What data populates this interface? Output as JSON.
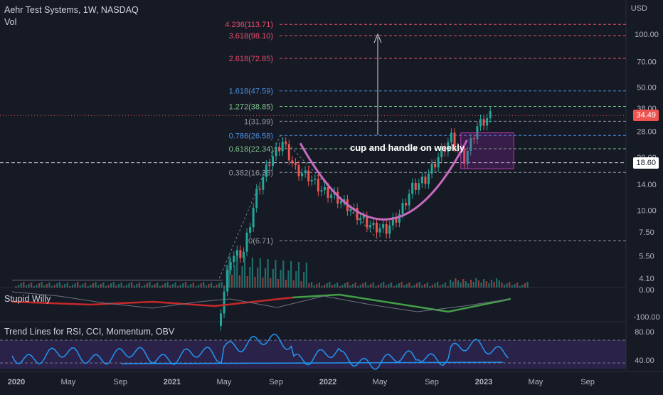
{
  "header": {
    "title": "Aehr Test Systems, 1W, NASDAQ",
    "volume_label": "Vol",
    "currency": "USD"
  },
  "indicators": {
    "pane1_label": "Stupid Willy",
    "pane2_label": "Trend Lines for RSI, CCI, Momentum, OBV"
  },
  "annotation": "cup and handle on weekly",
  "price_tags": {
    "last": "34.49",
    "level": "18.60"
  },
  "colors": {
    "background": "#161a25",
    "up": "#26a69a",
    "down": "#ef5350",
    "cup_curve": "#c86bbe",
    "handle_box": "#9c27b0",
    "fib_red": "#e64d6b",
    "fib_blue": "#4a8fe0",
    "fib_green": "#7fc38a",
    "rsi_line": "#2196f3"
  },
  "chart_data": [
    {
      "type": "candlestick",
      "title": "Aehr Test Systems, 1W, NASDAQ",
      "scale": "log",
      "x_tick_labels": [
        "2020",
        "May",
        "Sep",
        "2021",
        "May",
        "Sep",
        "2022",
        "May",
        "Sep",
        "2023",
        "May",
        "Sep"
      ],
      "y_tick_labels": [
        "100.00",
        "70.00",
        "50.00",
        "38.00",
        "28.00",
        "20.00",
        "14.00",
        "10.00",
        "7.50",
        "5.50",
        "4.10"
      ],
      "ylim": [
        3.9,
        130
      ],
      "last_price": 34.49,
      "marked_level": 18.6,
      "fibonacci_levels": [
        {
          "label": "4.236(113.71)",
          "value": 113.71
        },
        {
          "label": "3.618(98.10)",
          "value": 98.1
        },
        {
          "label": "2.618(72.85)",
          "value": 72.85
        },
        {
          "label": "1.618(47.59)",
          "value": 47.59
        },
        {
          "label": "1.272(38.85)",
          "value": 38.85
        },
        {
          "label": "1(31.99)",
          "value": 31.99
        },
        {
          "label": "0.786(26.58)",
          "value": 26.58
        },
        {
          "label": "0.618(22.34)",
          "value": 22.34
        },
        {
          "label": "0.382(16.38)",
          "value": 16.38
        },
        {
          "label": "0(6.71)",
          "value": 6.71
        }
      ],
      "closes_approx": [
        {
          "date": "2021-05",
          "close": 2.2
        },
        {
          "date": "2021-06",
          "close": 5.4
        },
        {
          "date": "2021-07",
          "close": 5.8
        },
        {
          "date": "2021-08",
          "close": 12.5
        },
        {
          "date": "2021-09",
          "close": 19.0
        },
        {
          "date": "2021-10",
          "close": 24.5
        },
        {
          "date": "2021-11",
          "close": 17.0
        },
        {
          "date": "2021-12",
          "close": 15.5
        },
        {
          "date": "2022-01",
          "close": 13.0
        },
        {
          "date": "2022-02",
          "close": 12.0
        },
        {
          "date": "2022-03",
          "close": 10.5
        },
        {
          "date": "2022-04",
          "close": 9.0
        },
        {
          "date": "2022-05",
          "close": 8.0
        },
        {
          "date": "2022-06",
          "close": 7.8
        },
        {
          "date": "2022-07",
          "close": 9.5
        },
        {
          "date": "2022-08",
          "close": 13.5
        },
        {
          "date": "2022-09",
          "close": 15.0
        },
        {
          "date": "2022-10",
          "close": 20.0
        },
        {
          "date": "2022-11",
          "close": 26.0
        },
        {
          "date": "2022-12",
          "close": 19.5
        },
        {
          "date": "2023-01",
          "close": 30.0
        },
        {
          "date": "2023-02",
          "close": 34.49
        }
      ]
    },
    {
      "type": "line",
      "title": "Stupid Willy",
      "y_tick_labels": [
        "0.00",
        "-100.00"
      ]
    },
    {
      "type": "line",
      "title": "Trend Lines for RSI, CCI, Momentum, OBV",
      "y_tick_labels": [
        "80.00",
        "40.00"
      ]
    }
  ]
}
